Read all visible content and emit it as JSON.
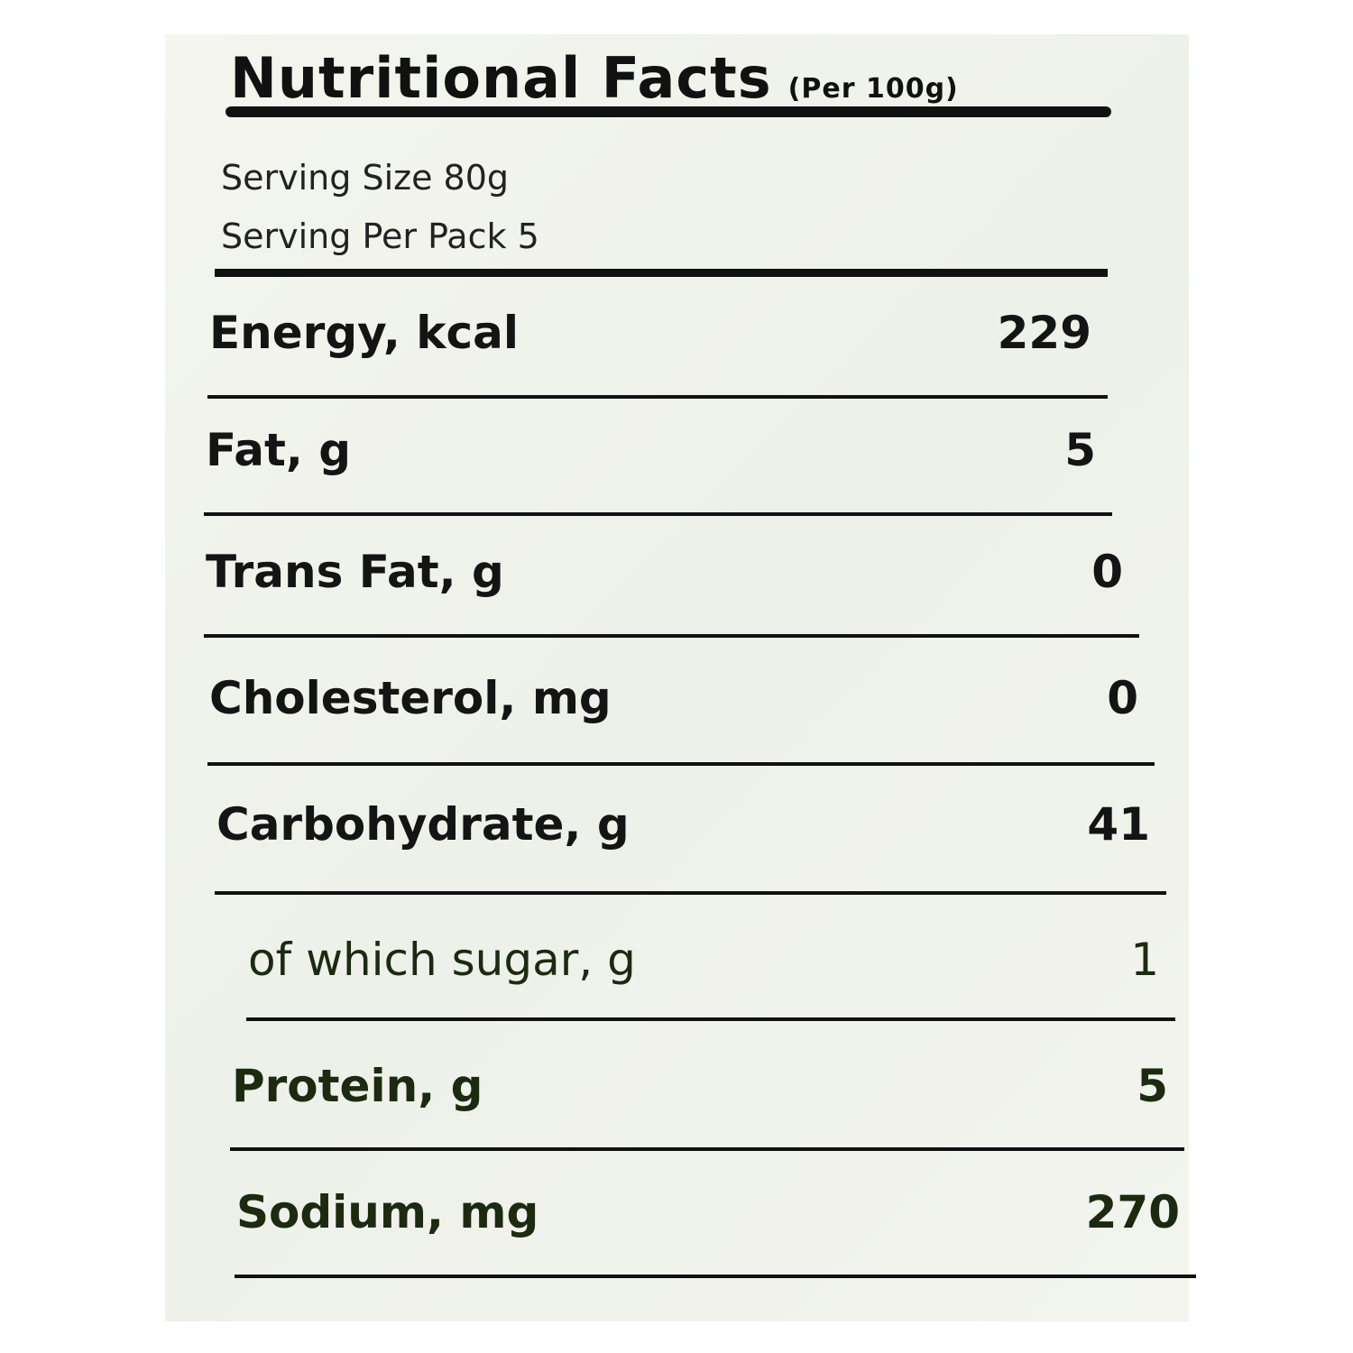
{
  "header": {
    "title": "Nutritional Facts",
    "basis": "(Per 100g)"
  },
  "serving": {
    "size": "Serving Size 80g",
    "per_pack": "Serving Per Pack 5"
  },
  "table": {
    "rows": [
      [
        "Energy, kcal",
        "229"
      ],
      [
        "Fat, g",
        "5"
      ],
      [
        "Trans Fat, g",
        "0"
      ],
      [
        "Cholesterol, mg",
        "0"
      ],
      [
        "Carbohydrate, g",
        "41"
      ],
      [
        "of which sugar, g",
        "1"
      ],
      [
        "Protein, g",
        "5"
      ],
      [
        "Sodium, mg",
        "270"
      ]
    ]
  }
}
